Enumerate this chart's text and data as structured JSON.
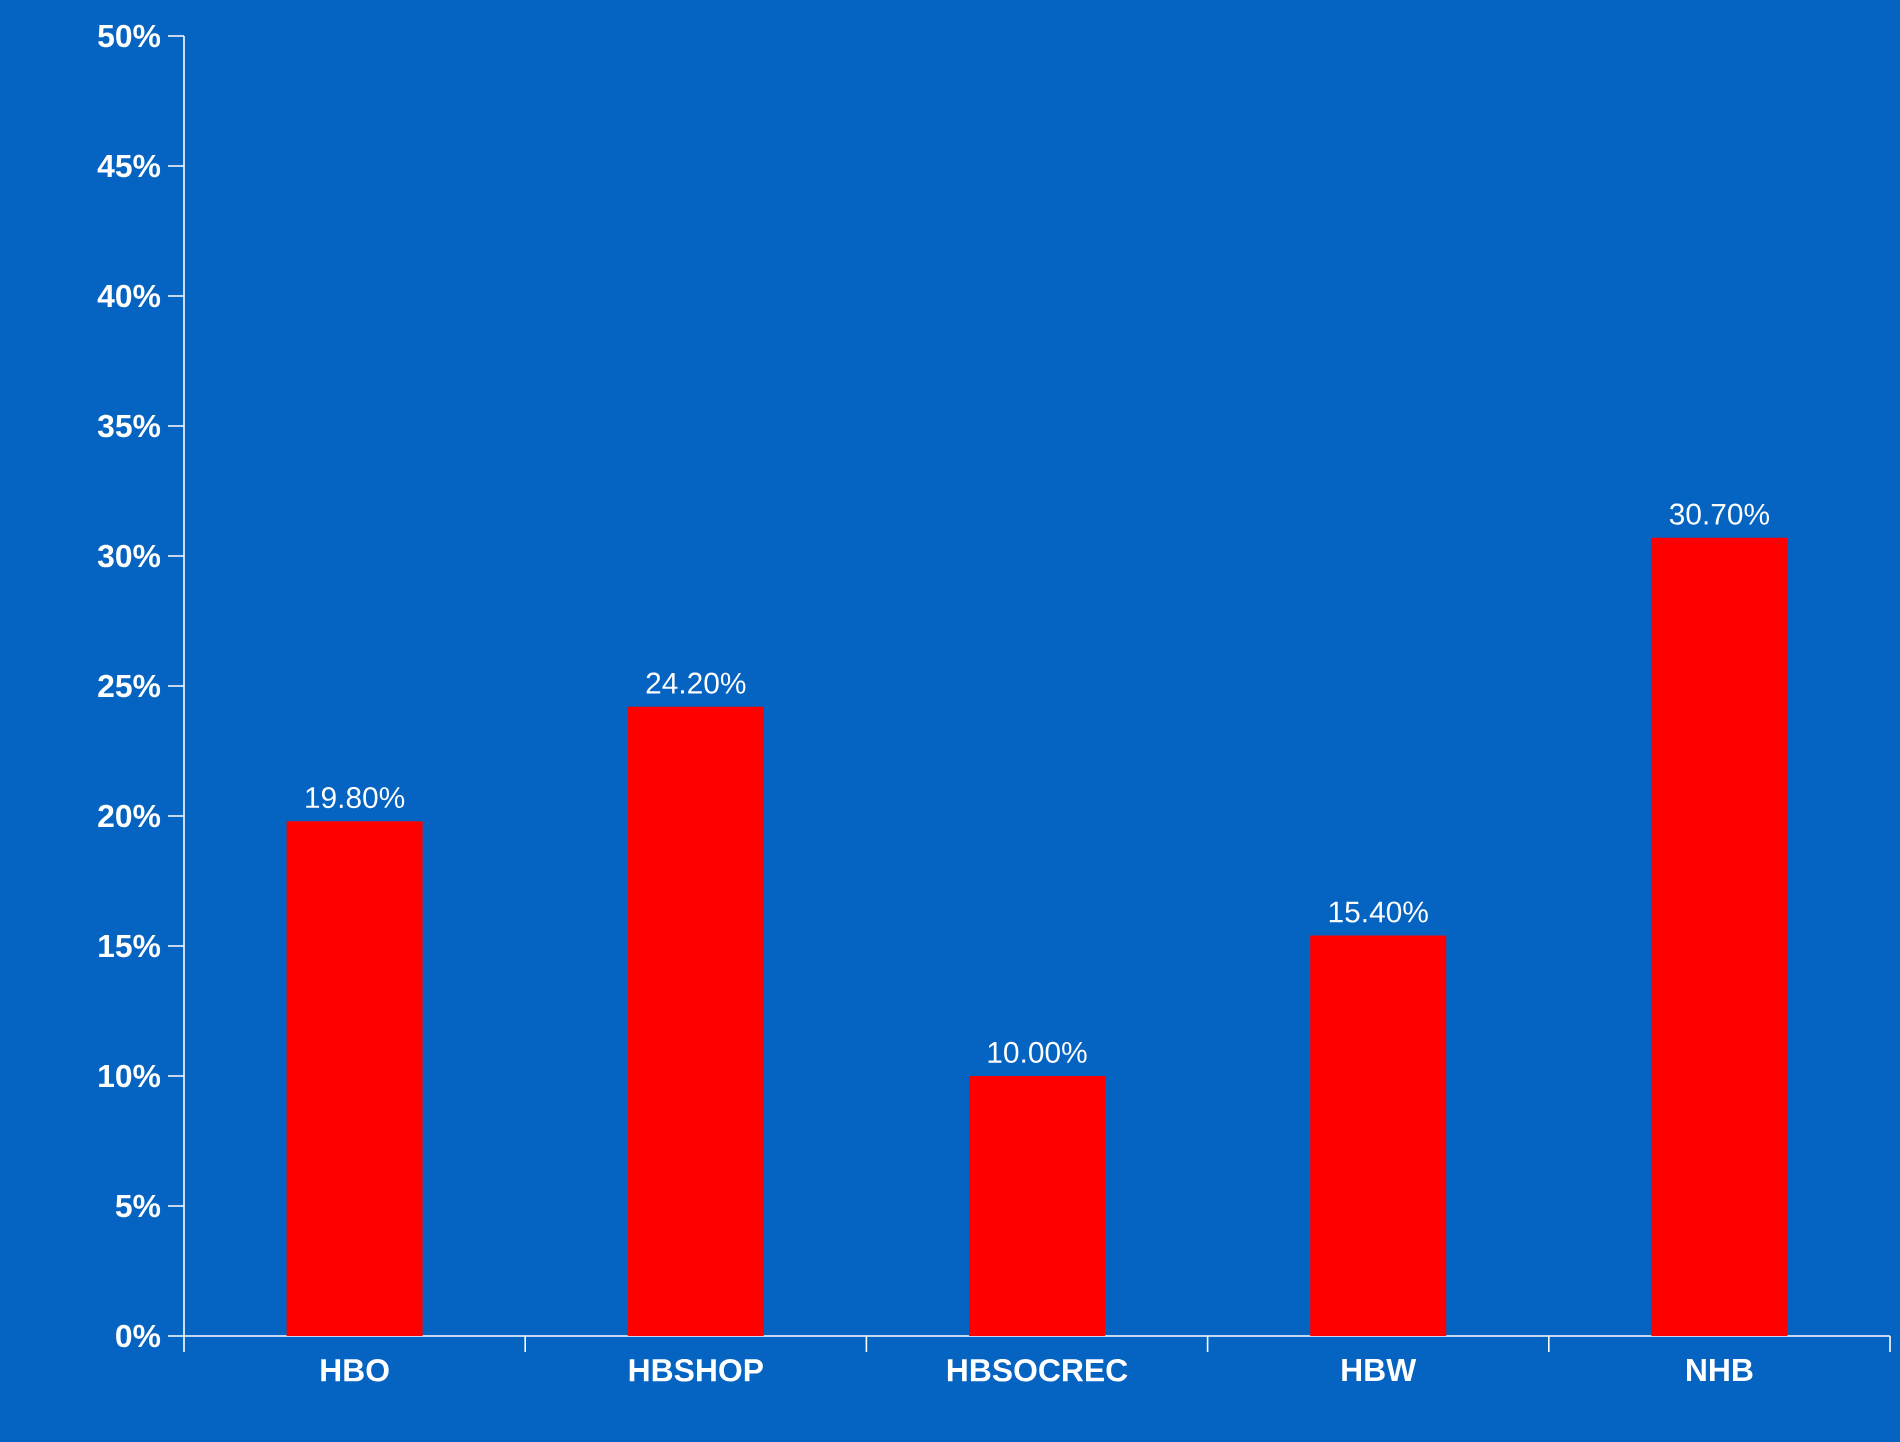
{
  "chart_data": {
    "type": "bar",
    "categories": [
      "HBO",
      "HBSHOP",
      "HBSOCREC",
      "HBW",
      "NHB"
    ],
    "values": [
      19.8,
      24.2,
      10.0,
      15.4,
      30.7
    ],
    "value_labels": [
      "19.80%",
      "24.20%",
      "10.00%",
      "15.40%",
      "30.70%"
    ],
    "color": "#ff0000",
    "ylim": [
      0,
      50
    ],
    "yticks": [
      {
        "value": 0,
        "label": "0%"
      },
      {
        "value": 5,
        "label": "5%"
      },
      {
        "value": 10,
        "label": "10%"
      },
      {
        "value": 15,
        "label": "15%"
      },
      {
        "value": 20,
        "label": "20%"
      },
      {
        "value": 25,
        "label": "25%"
      },
      {
        "value": 30,
        "label": "30%"
      },
      {
        "value": 35,
        "label": "35%"
      },
      {
        "value": 40,
        "label": "40%"
      },
      {
        "value": 45,
        "label": "45%"
      },
      {
        "value": 50,
        "label": "50%"
      }
    ],
    "grid": false
  }
}
